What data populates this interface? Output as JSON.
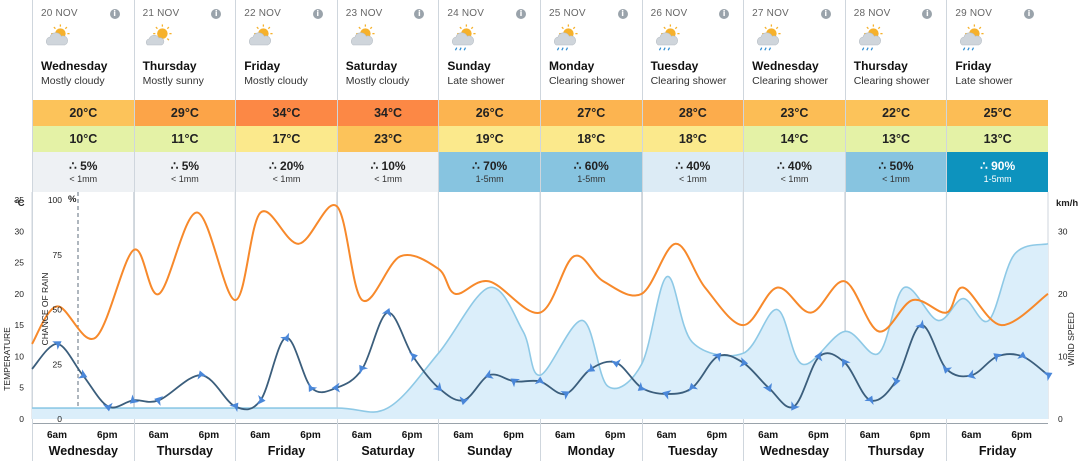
{
  "days": [
    {
      "date": "20 NOV",
      "name": "Wednesday",
      "desc": "Mostly cloudy",
      "icon": "mostly-cloudy-icon",
      "hi": "20°C",
      "lo": "10°C",
      "hi_color": "#fcc35a",
      "lo_color": "#e4f2a6",
      "rain_pct": "5%",
      "rain_amt": "< 1mm",
      "rain_color": "#eef1f4"
    },
    {
      "date": "21 NOV",
      "name": "Thursday",
      "desc": "Mostly sunny",
      "icon": "mostly-sunny-icon",
      "hi": "29°C",
      "lo": "11°C",
      "hi_color": "#fca448",
      "lo_color": "#e4f2a6",
      "rain_pct": "5%",
      "rain_amt": "< 1mm",
      "rain_color": "#eef1f4"
    },
    {
      "date": "22 NOV",
      "name": "Friday",
      "desc": "Mostly cloudy",
      "icon": "mostly-cloudy-icon",
      "hi": "34°C",
      "lo": "17°C",
      "hi_color": "#fc8845",
      "lo_color": "#fbe98c",
      "rain_pct": "20%",
      "rain_amt": "< 1mm",
      "rain_color": "#eef1f4"
    },
    {
      "date": "23 NOV",
      "name": "Saturday",
      "desc": "Mostly cloudy",
      "icon": "mostly-cloudy-icon",
      "hi": "34°C",
      "lo": "23°C",
      "hi_color": "#fc8845",
      "lo_color": "#fcc35a",
      "rain_pct": "10%",
      "rain_amt": "< 1mm",
      "rain_color": "#eef1f4"
    },
    {
      "date": "24 NOV",
      "name": "Sunday",
      "desc": "Late shower",
      "icon": "shower-icon",
      "hi": "26°C",
      "lo": "19°C",
      "hi_color": "#fcb450",
      "lo_color": "#fbe98c",
      "rain_pct": "70%",
      "rain_amt": "1-5mm",
      "rain_color": "#87c4e0"
    },
    {
      "date": "25 NOV",
      "name": "Monday",
      "desc": "Clearing shower",
      "icon": "clearing-shower-icon",
      "hi": "27°C",
      "lo": "18°C",
      "hi_color": "#fcb450",
      "lo_color": "#fbe98c",
      "rain_pct": "60%",
      "rain_amt": "1-5mm",
      "rain_color": "#87c4e0"
    },
    {
      "date": "26 NOV",
      "name": "Tuesday",
      "desc": "Clearing shower",
      "icon": "clearing-shower-icon",
      "hi": "28°C",
      "lo": "18°C",
      "hi_color": "#fcac4c",
      "lo_color": "#fbe98c",
      "rain_pct": "40%",
      "rain_amt": "< 1mm",
      "rain_color": "#dcebf5"
    },
    {
      "date": "27 NOV",
      "name": "Wednesday",
      "desc": "Clearing shower",
      "icon": "clearing-shower-icon",
      "hi": "23°C",
      "lo": "14°C",
      "hi_color": "#fcbd55",
      "lo_color": "#e4f2a6",
      "rain_pct": "40%",
      "rain_amt": "< 1mm",
      "rain_color": "#dcebf5"
    },
    {
      "date": "28 NOV",
      "name": "Thursday",
      "desc": "Clearing shower",
      "icon": "clearing-shower-icon",
      "hi": "22°C",
      "lo": "13°C",
      "hi_color": "#fcc35a",
      "lo_color": "#e4f2a6",
      "rain_pct": "50%",
      "rain_amt": "< 1mm",
      "rain_color": "#87c4e0"
    },
    {
      "date": "29 NOV",
      "name": "Friday",
      "desc": "Late shower",
      "icon": "shower-icon",
      "hi": "25°C",
      "lo": "13°C",
      "hi_color": "#fcbd55",
      "lo_color": "#e4f2a6",
      "rain_pct": "90%",
      "rain_amt": "1-5mm",
      "rain_color": "#0d93be",
      "rain_dark": true
    }
  ],
  "footer": {
    "t6": "6am",
    "t18": "6pm"
  },
  "colors": {
    "temp_line": "#f7892b",
    "wind_line": "#3b5e7c",
    "wind_arrow": "#4a87d9",
    "rain_line": "#8ec9e6",
    "rain_fill": "#dbeefa"
  },
  "chart_data": {
    "type": "line",
    "left_axis_temp": {
      "unit": "°C",
      "label": "TEMPERATURE",
      "ticks": [
        0,
        5,
        10,
        15,
        20,
        25,
        30,
        35
      ],
      "range": [
        0,
        35
      ]
    },
    "left_axis_rain": {
      "unit": "%",
      "label": "CHANCE OF RAIN",
      "ticks": [
        0,
        25,
        50,
        75,
        100
      ],
      "range": [
        0,
        100
      ]
    },
    "right_axis_wind": {
      "unit": "km/h",
      "label": "WIND SPEED",
      "ticks": [
        0,
        10,
        20,
        30
      ],
      "range": [
        0,
        35
      ]
    },
    "x_hours_per_day": 24,
    "series": [
      {
        "name": "temperature",
        "unit": "°C",
        "points_x_hours": [
          0,
          6,
          15,
          24,
          30,
          39,
          48,
          54,
          63,
          72,
          78,
          87,
          96,
          100,
          108,
          120,
          128,
          135,
          144,
          152,
          159,
          168,
          176,
          184,
          192,
          200,
          208,
          216,
          220,
          229,
          240
        ],
        "values": [
          12,
          18,
          13,
          27,
          20,
          33,
          19,
          33,
          28,
          34,
          19,
          26,
          24,
          20,
          22,
          17,
          26,
          22,
          20,
          28,
          21,
          15,
          21,
          17,
          22,
          14,
          19,
          17,
          21,
          15,
          20
        ]
      },
      {
        "name": "chance of rain",
        "unit": "%",
        "points_x_hours": [
          0,
          24,
          48,
          72,
          84,
          96,
          108,
          116,
          120,
          130,
          136,
          144,
          150,
          156,
          168,
          176,
          182,
          192,
          200,
          206,
          214,
          220,
          226,
          232,
          240
        ],
        "values": [
          5,
          5,
          5,
          5,
          5,
          30,
          60,
          40,
          20,
          45,
          15,
          25,
          65,
          35,
          30,
          50,
          25,
          40,
          30,
          60,
          45,
          55,
          45,
          75,
          80
        ]
      },
      {
        "name": "wind speed",
        "unit": "km/h",
        "points_x_hours": [
          0,
          6,
          12,
          18,
          24,
          30,
          40,
          48,
          54,
          60,
          66,
          72,
          78,
          84,
          90,
          96,
          102,
          108,
          114,
          120,
          126,
          132,
          138,
          144,
          150,
          156,
          162,
          168,
          174,
          180,
          186,
          192,
          198,
          204,
          210,
          216,
          222,
          228,
          234,
          240
        ],
        "values": [
          8,
          12,
          7,
          2,
          3,
          3,
          7,
          2,
          3,
          13,
          5,
          5,
          8,
          17,
          10,
          5,
          3,
          7,
          6,
          6,
          4,
          8,
          9,
          5,
          4,
          5,
          10,
          9,
          5,
          2,
          10,
          9,
          3,
          6,
          15,
          8,
          7,
          10,
          10,
          7
        ]
      }
    ]
  }
}
